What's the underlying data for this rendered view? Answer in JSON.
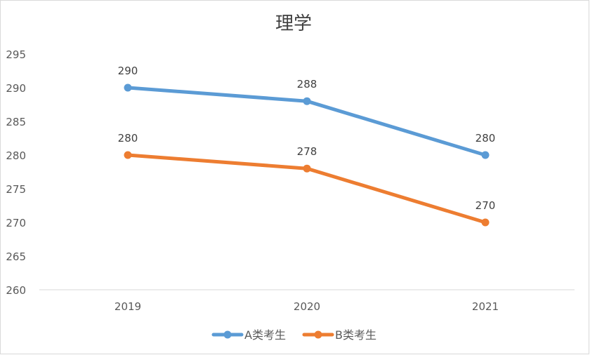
{
  "chart_data": {
    "type": "line",
    "title": "理学",
    "categories": [
      "2019",
      "2020",
      "2021"
    ],
    "series": [
      {
        "name": "A类考生",
        "values": [
          290,
          288,
          280
        ],
        "color": "#5b9bd5"
      },
      {
        "name": "B类考生",
        "values": [
          280,
          278,
          270
        ],
        "color": "#ed7d31"
      }
    ],
    "ylim": [
      260,
      295
    ],
    "yticks": [
      260,
      265,
      270,
      275,
      280,
      285,
      290,
      295
    ],
    "grid": false,
    "legend": "bottom",
    "data_labels": true
  }
}
